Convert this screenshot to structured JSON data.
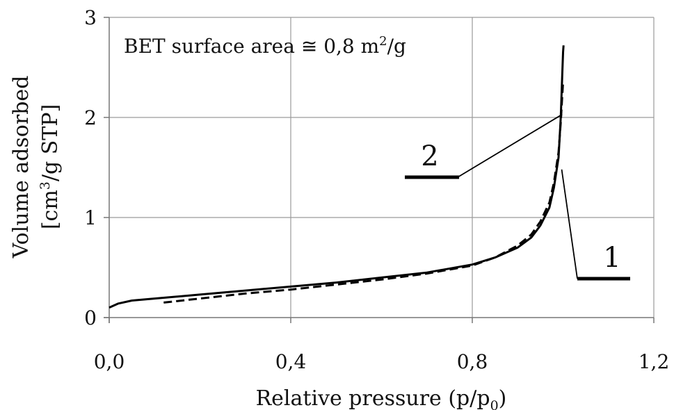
{
  "chart_data": {
    "type": "line",
    "xlabel": "Relative pressure (p/p",
    "xlabel_sub": "0",
    "xlabel_end": ")",
    "ylabel_line1": "Volume adsorbed",
    "ylabel_line2_a": "[cm",
    "ylabel_line2_sup": "3",
    "ylabel_line2_b": "/g STP]",
    "annotation_a": "BET surface area ≅ 0,8 m",
    "annotation_sup": "2",
    "annotation_b": "/g",
    "xlim": [
      0,
      1.2
    ],
    "ylim": [
      0,
      3
    ],
    "x_ticks": [
      0,
      0.4,
      0.8,
      1.2
    ],
    "x_tick_labels": [
      "0,0",
      "0,4",
      "0,8",
      "1,2"
    ],
    "y_ticks": [
      0,
      1,
      2,
      3
    ],
    "y_tick_labels": [
      "0",
      "1",
      "2",
      "3"
    ],
    "grid": true,
    "series": [
      {
        "label": "1",
        "style": "solid",
        "color": "#000000",
        "x": [
          0.0,
          0.02,
          0.05,
          0.1,
          0.2,
          0.3,
          0.4,
          0.5,
          0.6,
          0.7,
          0.8,
          0.85,
          0.9,
          0.93,
          0.95,
          0.97,
          0.98,
          0.99,
          0.995,
          0.998,
          1.0,
          1.001
        ],
        "y": [
          0.1,
          0.14,
          0.17,
          0.19,
          0.23,
          0.27,
          0.31,
          0.35,
          0.4,
          0.45,
          0.53,
          0.6,
          0.7,
          0.8,
          0.92,
          1.1,
          1.3,
          1.6,
          2.0,
          2.4,
          2.65,
          2.72
        ]
      },
      {
        "label": "2",
        "style": "dashed",
        "color": "#000000",
        "x": [
          0.12,
          0.2,
          0.3,
          0.4,
          0.5,
          0.6,
          0.7,
          0.8,
          0.85,
          0.9,
          0.93,
          0.95,
          0.97,
          0.98,
          0.99,
          0.995,
          0.998,
          1.0
        ],
        "y": [
          0.15,
          0.19,
          0.24,
          0.28,
          0.33,
          0.38,
          0.44,
          0.52,
          0.6,
          0.72,
          0.83,
          0.96,
          1.15,
          1.35,
          1.65,
          1.95,
          2.2,
          2.35
        ]
      }
    ]
  }
}
